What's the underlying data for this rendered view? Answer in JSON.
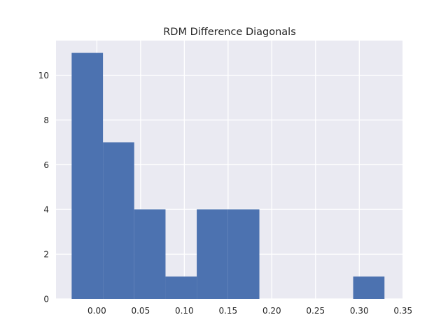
{
  "chart_data": {
    "type": "bar",
    "title": "RDM Difference Diagonals",
    "xlabel": "",
    "ylabel": "",
    "xlim": [
      -0.0467,
      0.3502
    ],
    "ylim": [
      0,
      11.55
    ],
    "grid": true,
    "bins": [
      {
        "x0": -0.0288,
        "x1": 0.007,
        "count": 11
      },
      {
        "x0": 0.007,
        "x1": 0.0427,
        "count": 7
      },
      {
        "x0": 0.0427,
        "x1": 0.0785,
        "count": 4
      },
      {
        "x0": 0.0785,
        "x1": 0.1142,
        "count": 1
      },
      {
        "x0": 0.1142,
        "x1": 0.15,
        "count": 4
      },
      {
        "x0": 0.15,
        "x1": 0.1858,
        "count": 4
      },
      {
        "x0": 0.1858,
        "x1": 0.2215,
        "count": 0
      },
      {
        "x0": 0.2215,
        "x1": 0.2573,
        "count": 0
      },
      {
        "x0": 0.2573,
        "x1": 0.293,
        "count": 0
      },
      {
        "x0": 0.293,
        "x1": 0.3288,
        "count": 1
      }
    ],
    "xticks": [
      0.0,
      0.05,
      0.1,
      0.15,
      0.2,
      0.25,
      0.3,
      0.35
    ],
    "xtick_labels": [
      "0.00",
      "0.05",
      "0.10",
      "0.15",
      "0.20",
      "0.25",
      "0.30",
      "0.35"
    ],
    "yticks": [
      0,
      2,
      4,
      6,
      8,
      10
    ],
    "ytick_labels": [
      "0",
      "2",
      "4",
      "6",
      "8",
      "10"
    ],
    "colors": {
      "bar": "#4c72b0",
      "plot_bg": "#eaeaf2",
      "grid": "#ffffff"
    }
  }
}
